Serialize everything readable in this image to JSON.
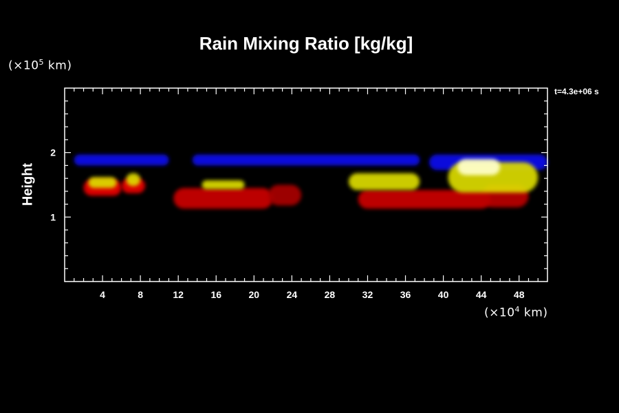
{
  "chart_data": {
    "type": "heatmap",
    "title": "Rain Mixing Ratio [kg/kg]",
    "ylabel": "Height",
    "xlabel": "",
    "x_unit": {
      "prefix": "(×10",
      "exp": "4",
      "suffix": " km)"
    },
    "y_unit": {
      "prefix": "(×10",
      "exp": "5",
      "suffix": " km)"
    },
    "timestamp": "t=4.3e+06 s",
    "xlim": [
      0,
      51
    ],
    "ylim": [
      0,
      3
    ],
    "x_ticks": [
      4,
      8,
      12,
      16,
      20,
      24,
      28,
      32,
      36,
      40,
      44,
      48
    ],
    "x_tick_labels": [
      "4",
      "8",
      "12",
      "16",
      "20",
      "24",
      "28",
      "32",
      "36",
      "40",
      "44",
      "48"
    ],
    "y_ticks": [
      1,
      2
    ],
    "y_tick_labels": [
      "1",
      "2"
    ],
    "colors": {
      "low": "#0000ff",
      "mid": "#ff0000",
      "high": "#ffff00",
      "edge": "#00ff00",
      "peak": "#ffffcc"
    },
    "regions": [
      {
        "name": "cloud-top-band-1",
        "color": "#1010ee",
        "x": [
          1,
          11
        ],
        "y": [
          1.8,
          1.97
        ]
      },
      {
        "name": "cloud-top-band-2",
        "color": "#1010ee",
        "x": [
          13.5,
          37.5
        ],
        "y": [
          1.8,
          1.97
        ]
      },
      {
        "name": "cloud-top-band-3",
        "color": "#1010ee",
        "x": [
          38.5,
          51
        ],
        "y": [
          1.73,
          1.97
        ]
      },
      {
        "name": "rain-cell-1",
        "color": "#ee0000",
        "x": [
          2,
          6
        ],
        "y": [
          1.33,
          1.58
        ]
      },
      {
        "name": "rain-cell-1-core",
        "color": "#dddd00",
        "x": [
          2.5,
          5.5
        ],
        "y": [
          1.45,
          1.62
        ]
      },
      {
        "name": "rain-cell-2",
        "color": "#ee0000",
        "x": [
          6,
          8.5
        ],
        "y": [
          1.37,
          1.6
        ]
      },
      {
        "name": "rain-cell-2-core",
        "color": "#dddd00",
        "x": [
          6.5,
          8
        ],
        "y": [
          1.48,
          1.68
        ]
      },
      {
        "name": "rain-band-1",
        "color": "#cc0000",
        "x": [
          11.5,
          22
        ],
        "y": [
          1.13,
          1.45
        ]
      },
      {
        "name": "rain-band-1-core",
        "color": "#dddd00",
        "x": [
          14.5,
          19
        ],
        "y": [
          1.43,
          1.57
        ]
      },
      {
        "name": "rain-cell-3",
        "color": "#aa0000",
        "x": [
          21.5,
          25
        ],
        "y": [
          1.18,
          1.5
        ]
      },
      {
        "name": "rain-band-2",
        "color": "#cc0000",
        "x": [
          31,
          45
        ],
        "y": [
          1.13,
          1.42
        ]
      },
      {
        "name": "rain-band-2-core",
        "color": "#dddd00",
        "x": [
          30,
          37.5
        ],
        "y": [
          1.42,
          1.68
        ]
      },
      {
        "name": "rain-cell-4",
        "color": "#bb0000",
        "x": [
          44,
          49
        ],
        "y": [
          1.15,
          1.5
        ]
      },
      {
        "name": "rain-cell-4-core",
        "color": "#dddd00",
        "x": [
          40.5,
          50
        ],
        "y": [
          1.38,
          1.85
        ]
      },
      {
        "name": "rain-cell-4-peak",
        "color": "#ffffcc",
        "x": [
          41.5,
          46
        ],
        "y": [
          1.65,
          1.9
        ]
      }
    ]
  }
}
